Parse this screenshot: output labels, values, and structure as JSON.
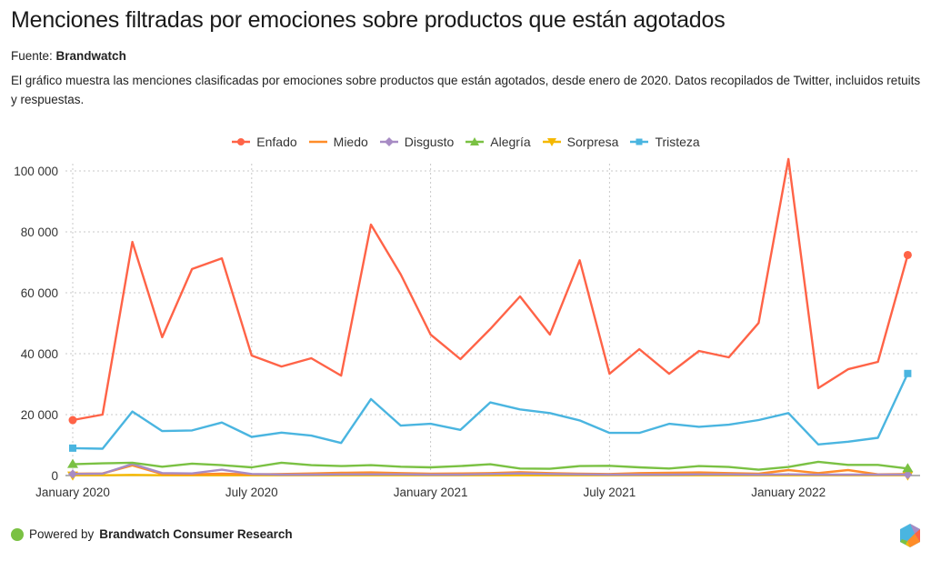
{
  "header": {
    "title": "Menciones filtradas por emociones sobre productos que están agotados",
    "source_label": "Fuente:",
    "source_name": "Brandwatch",
    "description": "El gráfico muestra las menciones clasificadas por emociones sobre productos que están agotados, desde enero de 2020. Datos recopilados de Twitter, incluidos retuits y respuestas."
  },
  "footer": {
    "powered_by": "Powered by",
    "brand": "Brandwatch Consumer Research",
    "logo_icon": "brandwatch-hexagon-logo-icon"
  },
  "chart_data": {
    "type": "line",
    "title": "Menciones filtradas por emociones sobre productos que están agotados",
    "xlabel": "",
    "ylabel": "",
    "ylim": [
      0,
      100000
    ],
    "yticks": [
      0,
      20000,
      40000,
      60000,
      80000,
      100000
    ],
    "ytick_labels": [
      "0",
      "20 000",
      "40 000",
      "60 000",
      "80 000",
      "100 000"
    ],
    "xtick_labels": [
      "January 2020",
      "July 2020",
      "January 2021",
      "July 2021",
      "January 2022"
    ],
    "xtick_indices": [
      0,
      6,
      12,
      18,
      24
    ],
    "grid": true,
    "legend_position": "top-center",
    "x": [
      "2020-01",
      "2020-02",
      "2020-03",
      "2020-04",
      "2020-05",
      "2020-06",
      "2020-07",
      "2020-08",
      "2020-09",
      "2020-10",
      "2020-11",
      "2020-12",
      "2021-01",
      "2021-02",
      "2021-03",
      "2021-04",
      "2021-05",
      "2021-06",
      "2021-07",
      "2021-08",
      "2021-09",
      "2021-10",
      "2021-11",
      "2021-12",
      "2022-01",
      "2022-02",
      "2022-03",
      "2022-04",
      "2022-05"
    ],
    "series": [
      {
        "name": "Enfado",
        "color": "#ff6347",
        "marker": "circle",
        "values": [
          18200,
          20000,
          76700,
          45400,
          67800,
          71300,
          39400,
          35800,
          38500,
          32800,
          82400,
          66000,
          46300,
          38200,
          48100,
          58800,
          46300,
          70700,
          33400,
          41500,
          33400,
          40900,
          38800,
          50100,
          103900,
          28700,
          34900,
          37300,
          72400
        ]
      },
      {
        "name": "Miedo",
        "color": "#ff8c28",
        "marker": "none",
        "values": [
          600,
          700,
          3300,
          500,
          400,
          600,
          400,
          500,
          700,
          900,
          1000,
          800,
          600,
          700,
          800,
          1100,
          800,
          600,
          500,
          800,
          900,
          1000,
          800,
          600,
          1800,
          800,
          1800,
          400,
          500
        ]
      },
      {
        "name": "Disgusto",
        "color": "#a78bc4",
        "marker": "diamond",
        "values": [
          500,
          600,
          3800,
          800,
          700,
          1900,
          500,
          300,
          300,
          400,
          400,
          400,
          300,
          300,
          500,
          700,
          500,
          400,
          300,
          300,
          300,
          400,
          400,
          300,
          400,
          300,
          300,
          300,
          300
        ]
      },
      {
        "name": "Alegría",
        "color": "#7ac143",
        "marker": "triangle",
        "values": [
          3700,
          4000,
          4200,
          2900,
          3900,
          3400,
          2700,
          4200,
          3400,
          3100,
          3400,
          2900,
          2700,
          3100,
          3700,
          2300,
          2200,
          3100,
          3200,
          2700,
          2300,
          3100,
          2800,
          1900,
          2800,
          4500,
          3500,
          3500,
          2300
        ]
      },
      {
        "name": "Sorpresa",
        "color": "#f5b800",
        "marker": "triangle-down",
        "values": [
          100,
          100,
          200,
          100,
          100,
          100,
          100,
          100,
          100,
          100,
          100,
          100,
          100,
          100,
          100,
          100,
          100,
          100,
          100,
          100,
          100,
          100,
          100,
          100,
          100,
          100,
          100,
          100,
          100
        ]
      },
      {
        "name": "Tristeza",
        "color": "#4ab5e0",
        "marker": "square",
        "values": [
          9000,
          8800,
          21000,
          14600,
          14800,
          17400,
          12700,
          14100,
          13100,
          10700,
          25100,
          16400,
          17000,
          15000,
          24000,
          21700,
          20500,
          18100,
          14000,
          14000,
          17000,
          16000,
          16700,
          18200,
          20500,
          10200,
          11100,
          12400,
          33500
        ]
      }
    ]
  }
}
